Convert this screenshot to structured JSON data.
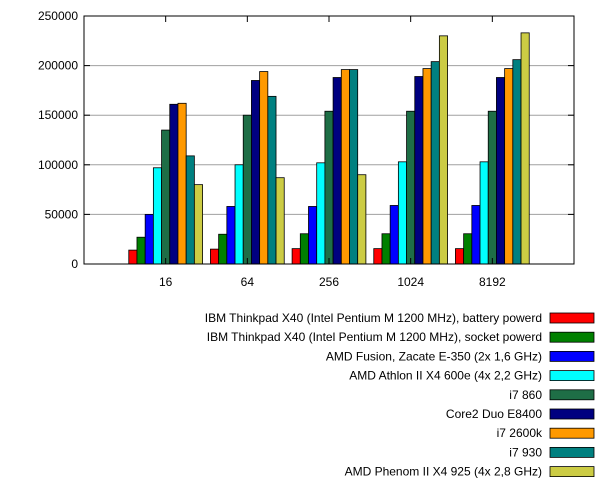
{
  "chart_data": {
    "type": "bar",
    "title": "",
    "xlabel": "",
    "ylabel": "",
    "categories": [
      "16",
      "64",
      "256",
      "1024",
      "8192"
    ],
    "ylim": [
      0,
      250000
    ],
    "yticks": [
      0,
      50000,
      100000,
      150000,
      200000,
      250000
    ],
    "ytick_labels": [
      "0",
      "50000",
      "100000",
      "150000",
      "200000",
      "250000"
    ],
    "grid": true,
    "legend_position": "bottom-right",
    "series": [
      {
        "name": "IBM Thinkpad X40 (Intel Pentium M 1200 MHz), battery powerd",
        "color": "#ff0000",
        "values": [
          14000,
          15000,
          15500,
          15500,
          15500
        ]
      },
      {
        "name": "IBM Thinkpad X40 (Intel Pentium M 1200 MHz), socket powerd",
        "color": "#008000",
        "values": [
          27000,
          30000,
          30500,
          30500,
          30500
        ]
      },
      {
        "name": "AMD Fusion, Zacate E-350 (2x 1,6 GHz)",
        "color": "#0000ff",
        "values": [
          50000,
          58000,
          58000,
          59000,
          59000
        ]
      },
      {
        "name": "AMD Athlon II X4 600e (4x 2,2 GHz)",
        "color": "#00ffff",
        "values": [
          97000,
          100000,
          102000,
          103000,
          103000
        ]
      },
      {
        "name": "i7 860",
        "color": "#1e6e46",
        "values": [
          135000,
          150000,
          154000,
          154000,
          154000
        ]
      },
      {
        "name": "Core2 Duo E8400",
        "color": "#000080",
        "values": [
          161000,
          185000,
          188000,
          189000,
          188000
        ]
      },
      {
        "name": "i7 2600k",
        "color": "#ff9900",
        "values": [
          162000,
          194000,
          196000,
          197000,
          197000
        ]
      },
      {
        "name": "i7 930",
        "color": "#008080",
        "values": [
          109000,
          169000,
          196000,
          204000,
          206000
        ]
      },
      {
        "name": "AMD Phenom II X4 925 (4x 2,8 GHz)",
        "color": "#cccc44",
        "values": [
          80000,
          87000,
          90000,
          230000,
          233000
        ]
      }
    ]
  }
}
